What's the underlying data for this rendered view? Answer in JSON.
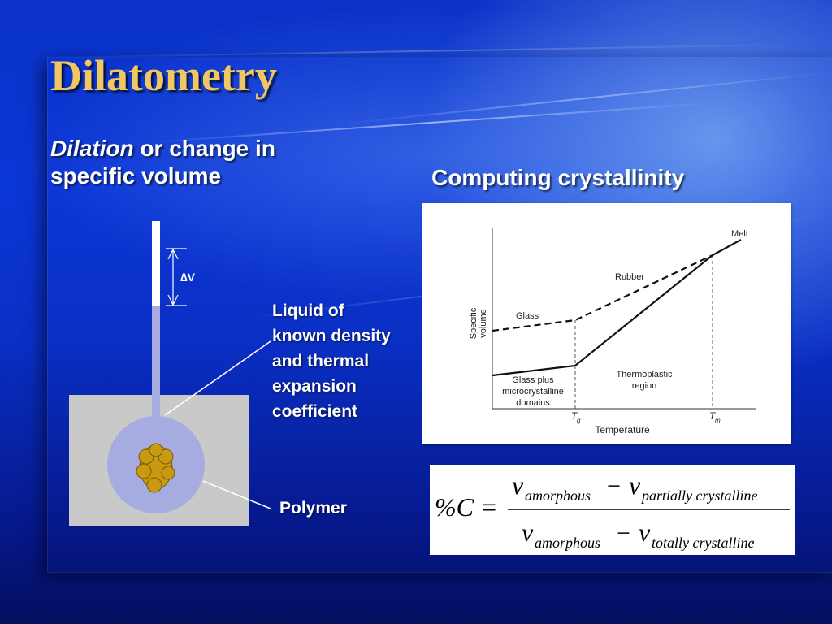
{
  "slide": {
    "title": "Dilatometry",
    "left_heading_italic": "Dilation",
    "left_heading_rest_line1": " or change in",
    "left_heading_line2": "specific volume",
    "right_heading": "Computing crystallinity"
  },
  "dilatometer": {
    "delta_v_label": "∆V",
    "liquid_label_lines": [
      "Liquid of",
      "known density",
      "and thermal",
      "expansion",
      "coefficient"
    ],
    "polymer_label": "Polymer"
  },
  "chart": {
    "ylabel_lines": [
      "Specific",
      "volume"
    ],
    "xlabel": "Temperature",
    "tick_tg_main": "T",
    "tick_tg_sub": "g",
    "tick_tm_main": "T",
    "tick_tm_sub": "m",
    "label_melt": "Melt",
    "label_rubber": "Rubber",
    "label_glass": "Glass",
    "label_glass_plus_lines": [
      "Glass plus",
      "microcrystalline",
      "domains"
    ],
    "label_thermoplastic_lines": [
      "Thermoplastic",
      "region"
    ]
  },
  "formula": {
    "lhs": "%C =",
    "v": "v",
    "minus": "−",
    "sub_amorphous": "amorphous",
    "sub_partially": "partially crystalline",
    "sub_totally": "totally crystalline"
  }
}
